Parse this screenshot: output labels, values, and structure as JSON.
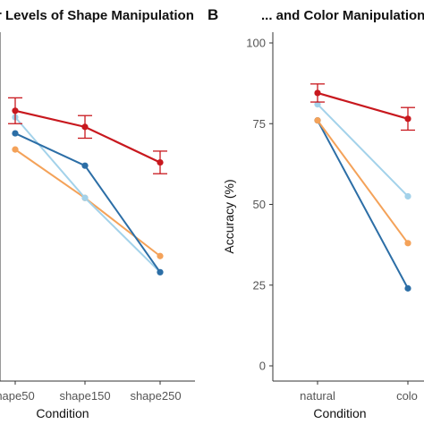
{
  "panel_a": {
    "title": "r Levels of Shape Manipulation"
  },
  "panel_b": {
    "letter": "B",
    "title": "... and Color Manipulation"
  },
  "chart_data": [
    {
      "type": "line",
      "title": "r Levels of Shape Manipulation",
      "xlabel": "Condition",
      "ylabel": "",
      "categories": [
        "hape50",
        "shape150",
        "shape250"
      ],
      "ylim": [
        0,
        100
      ],
      "grid": false,
      "series": [
        {
          "color": "#c8181e",
          "values": [
            79,
            74,
            63
          ],
          "error": [
            4,
            3.5,
            3.5
          ]
        },
        {
          "color": "#2c6ea6",
          "values": [
            72,
            62,
            29
          ]
        },
        {
          "color": "#a3d2ea",
          "values": [
            77,
            52,
            29
          ]
        },
        {
          "color": "#f4a259",
          "values": [
            67,
            52,
            34
          ]
        }
      ]
    },
    {
      "type": "line",
      "title": "... and Color Manipulation",
      "xlabel": "Condition",
      "ylabel": "Accuracy (%)",
      "categories": [
        "natural",
        "colo"
      ],
      "yticks": [
        "0",
        "25",
        "50",
        "75",
        "100"
      ],
      "ylim": [
        0,
        100
      ],
      "grid": false,
      "series": [
        {
          "color": "#c8181e",
          "values": [
            84.5,
            76.5
          ],
          "error": [
            2.8,
            3.5
          ]
        },
        {
          "color": "#a3d2ea",
          "values": [
            81,
            52.5
          ]
        },
        {
          "color": "#f4a259",
          "values": [
            76,
            38
          ]
        },
        {
          "color": "#2c6ea6",
          "values": [
            76,
            24
          ]
        }
      ]
    }
  ]
}
